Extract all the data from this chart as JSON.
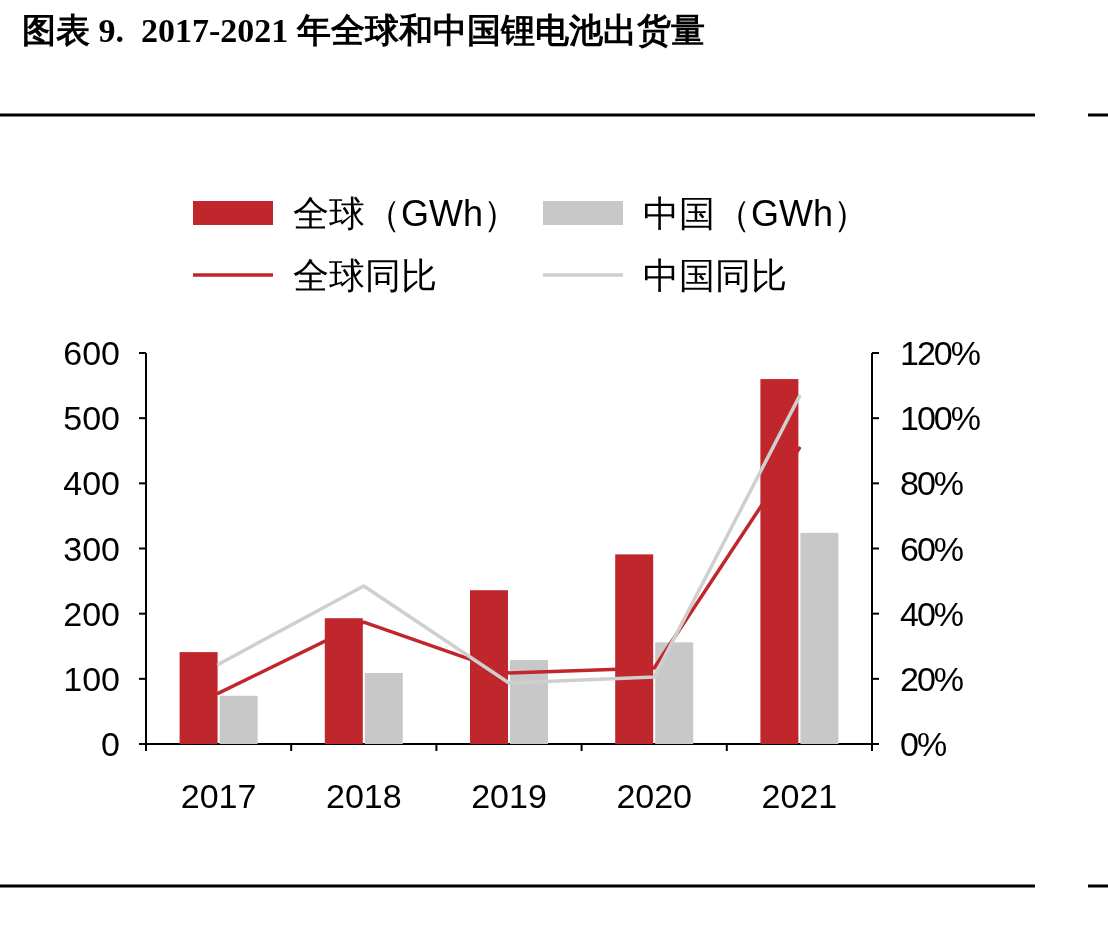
{
  "chart_data": {
    "type": "bar",
    "title": "图表 9.  2017-2021 年全球和中国锂电池出货量",
    "categories": [
      "2017",
      "2018",
      "2019",
      "2020",
      "2021"
    ],
    "series": [
      {
        "name": "全球（GWh）",
        "color": "#c0272d",
        "values": [
          141,
          193,
          236,
          291,
          560
        ]
      },
      {
        "name": "中国（GWh）",
        "color": "#c8c8c8",
        "values": [
          74,
          109,
          129,
          156,
          324
        ]
      },
      {
        "name": "全球同比",
        "type": "line",
        "axis": "y2",
        "color": "#c0272d",
        "values": [
          15.6,
          37.4,
          21.8,
          23.3,
          90.8
        ]
      },
      {
        "name": "中国同比",
        "type": "line",
        "axis": "y2",
        "color": "#cfcfcf",
        "values": [
          24.5,
          48.5,
          18.7,
          20.6,
          106.7
        ]
      }
    ],
    "ylim": [
      0,
      600
    ],
    "yticks": [
      0,
      100,
      200,
      300,
      400,
      500,
      600
    ],
    "y2lim": [
      0,
      120
    ],
    "y2ticks": [
      {
        "value": 0,
        "label": "0%"
      },
      {
        "value": 20,
        "label": "20%"
      },
      {
        "value": 40,
        "label": "40%"
      },
      {
        "value": 60,
        "label": "60%"
      },
      {
        "value": 80,
        "label": "80%"
      },
      {
        "value": 100,
        "label": "100%"
      },
      {
        "value": 120,
        "label": "120%"
      }
    ],
    "legend": "top"
  }
}
